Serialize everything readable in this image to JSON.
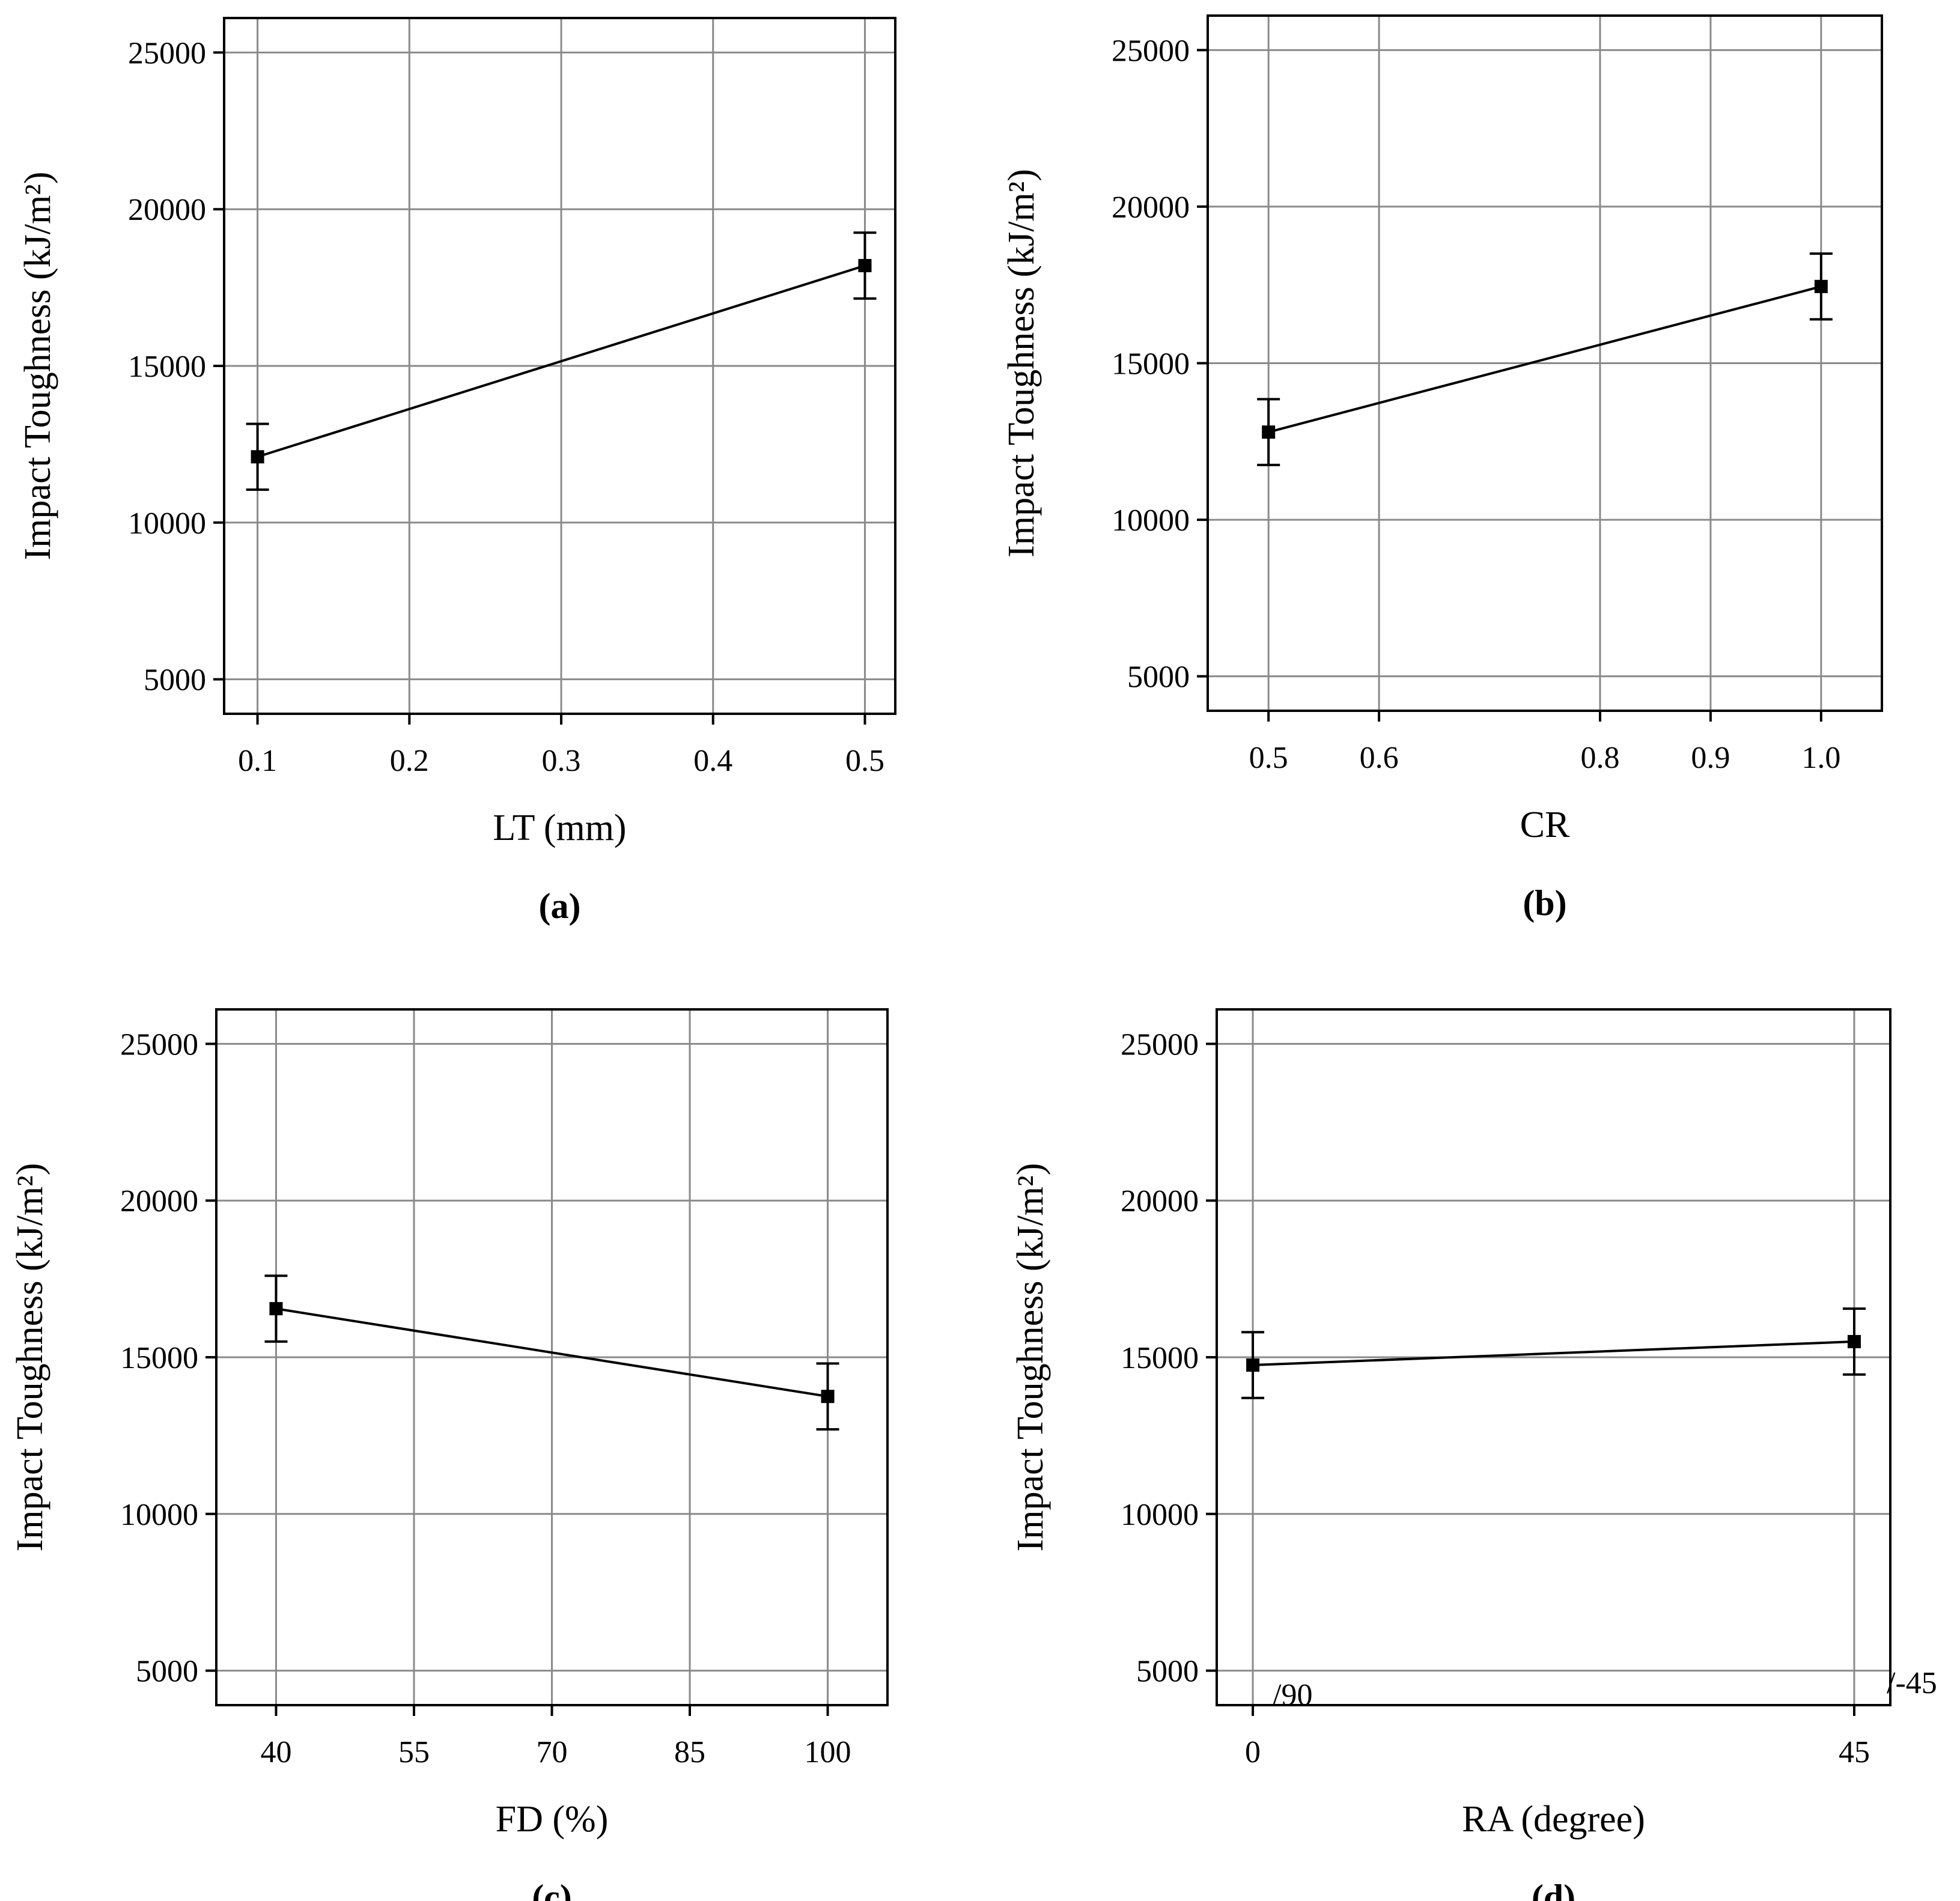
{
  "chart_data": [
    {
      "type": "line",
      "panel_label": "(a)",
      "xlabel": "LT (mm)",
      "ylabel": "Impact Toughness (kJ/m²)",
      "x_ticks": [
        "0.1",
        "0.2",
        "0.3",
        "0.4",
        "0.5"
      ],
      "y_ticks": [
        "5000",
        "10000",
        "15000",
        "20000",
        "25000"
      ],
      "xlim": [
        0.078,
        0.52
      ],
      "ylim": [
        3900,
        26100
      ],
      "grid": true,
      "series": [
        {
          "x": [
            0.1,
            0.5
          ],
          "y": [
            12100,
            18200
          ],
          "err": [
            1050,
            1050
          ]
        }
      ],
      "annotations": []
    },
    {
      "type": "line",
      "panel_label": "(b)",
      "xlabel": "CR",
      "ylabel": "Impact Toughness (kJ/m²)",
      "x_ticks": [
        "0.5",
        "0.6",
        "0.8",
        "0.9",
        "1.0"
      ],
      "y_ticks": [
        "5000",
        "10000",
        "15000",
        "20000",
        "25000"
      ],
      "xlim": [
        0.445,
        1.055
      ],
      "ylim": [
        3900,
        26100
      ],
      "grid": true,
      "series": [
        {
          "x": [
            0.5,
            1.0
          ],
          "y": [
            12800,
            17450
          ],
          "err": [
            1050,
            1050
          ]
        }
      ],
      "annotations": []
    },
    {
      "type": "line",
      "panel_label": "(c)",
      "xlabel": "FD (%)",
      "ylabel": "Impact Toughness (kJ/m²)",
      "x_ticks": [
        "40",
        "55",
        "70",
        "85",
        "100"
      ],
      "y_ticks": [
        "5000",
        "10000",
        "15000",
        "20000",
        "25000"
      ],
      "xlim": [
        33.5,
        106.5
      ],
      "ylim": [
        3900,
        26100
      ],
      "grid": true,
      "series": [
        {
          "x": [
            40,
            100
          ],
          "y": [
            16550,
            13750
          ],
          "err": [
            1050,
            1050
          ]
        }
      ],
      "annotations": []
    },
    {
      "type": "line",
      "panel_label": "(d)",
      "xlabel": "RA (degree)",
      "ylabel": "Impact Toughness (kJ/m²)",
      "x_ticks": [
        "0",
        "45"
      ],
      "y_ticks": [
        "5000",
        "10000",
        "15000",
        "20000",
        "25000"
      ],
      "xlim": [
        -2.7,
        47.7
      ],
      "ylim": [
        3900,
        26100
      ],
      "grid": true,
      "series": [
        {
          "x": [
            0,
            45
          ],
          "y": [
            14750,
            15500
          ],
          "err": [
            1050,
            1050
          ]
        }
      ],
      "annotations": [
        "/90",
        "/-45"
      ]
    }
  ]
}
